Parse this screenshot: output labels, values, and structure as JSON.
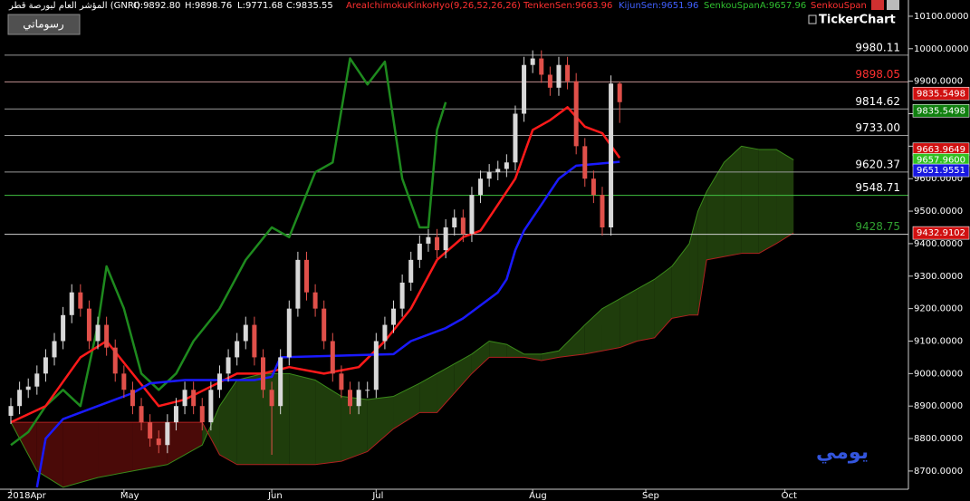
{
  "header": {
    "instrument": "المؤشر العام لبورصة قطر (GNRI)",
    "open": "O:9892.80",
    "high": "H:9898.76",
    "low": "L:9771.68",
    "close": "C:9835.55",
    "indicator": "AreaIchimokuKinkoHyo(9,26,52,26,26)",
    "tenkan": "TenkenSen:9663.96",
    "kijun": "KijunSen:9651.96",
    "senkou_a": "SenkouSpanA:9657.96",
    "senkou_b": "SenkouSpan",
    "logo": "TickerChart",
    "button": "رسوماتي"
  },
  "chart_data": {
    "type": "candlestick",
    "watermark": "يومي",
    "xlim": [
      -1.25,
      103.2
    ],
    "ylim": [
      8644,
      10150
    ],
    "xticks": [
      {
        "value": 0,
        "label": "2018Apr"
      },
      {
        "value": 13,
        "label": "May"
      },
      {
        "value": 30,
        "label": "Jun"
      },
      {
        "value": 42,
        "label": "Jul"
      },
      {
        "value": 60,
        "label": "Aug"
      },
      {
        "value": 73,
        "label": "Sep"
      },
      {
        "value": 89,
        "label": "Oct"
      }
    ],
    "yticks": [
      {
        "value": 8700,
        "label": "8700.0000"
      },
      {
        "value": 8800,
        "label": "8800.0000"
      },
      {
        "value": 8900,
        "label": "8900.0000"
      },
      {
        "value": 9000,
        "label": "9000.0000"
      },
      {
        "value": 9100,
        "label": "9100.0000"
      },
      {
        "value": 9200,
        "label": "9200.0000"
      },
      {
        "value": 9300,
        "label": "9300.0000"
      },
      {
        "value": 9400,
        "label": "9400.0000"
      },
      {
        "value": 9500,
        "label": "9500.0000"
      },
      {
        "value": 9600,
        "label": "9600.0000"
      },
      {
        "value": 9700,
        "label": "9700.0000"
      },
      {
        "value": 9800,
        "label": "9800.0000"
      },
      {
        "value": 9900,
        "label": "9900.0000"
      },
      {
        "value": 10000,
        "label": "10000.0000"
      },
      {
        "value": 10100,
        "label": "10100.0000"
      }
    ],
    "candles": {
      "up_color": "#d8d8d8",
      "down_color": "#e0504a",
      "x": [
        0,
        1,
        2,
        3,
        4,
        5,
        6,
        7,
        8,
        9,
        10,
        11,
        12,
        13,
        14,
        15,
        16,
        17,
        18,
        19,
        20,
        21,
        22,
        23,
        24,
        25,
        26,
        27,
        28,
        29,
        30,
        31,
        32,
        33,
        34,
        35,
        36,
        37,
        38,
        39,
        40,
        41,
        42,
        43,
        44,
        45,
        46,
        47,
        48,
        49,
        50,
        51,
        52,
        53,
        54,
        55,
        56,
        57,
        58,
        59,
        60,
        61,
        62,
        63,
        64,
        65,
        66,
        67,
        68,
        69,
        70
      ],
      "open": [
        8870,
        8900,
        8950,
        8960,
        9000,
        9050,
        9100,
        9180,
        9250,
        9200,
        9100,
        9150,
        9080,
        9000,
        8950,
        8900,
        8850,
        8800,
        8780,
        8850,
        8900,
        8950,
        8900,
        8850,
        8950,
        9000,
        9050,
        9100,
        9150,
        9050,
        8950,
        8900,
        9050,
        9200,
        9350,
        9250,
        9200,
        9100,
        9000,
        8950,
        8900,
        8950,
        8950,
        9100,
        9150,
        9200,
        9280,
        9350,
        9400,
        9420,
        9380,
        9450,
        9480,
        9430,
        9550,
        9600,
        9620,
        9630,
        9650,
        9800,
        9950,
        9970,
        9920,
        9880,
        9950,
        9900,
        9700,
        9600,
        9550,
        9450,
        9892.8
      ],
      "high": [
        8925,
        8975,
        8985,
        9025,
        9075,
        9125,
        9205,
        9275,
        9275,
        9225,
        9175,
        9175,
        9105,
        9025,
        8975,
        8925,
        8875,
        8825,
        8875,
        8925,
        8975,
        8975,
        8925,
        8975,
        9025,
        9075,
        9125,
        9175,
        9175,
        9075,
        8975,
        9075,
        9225,
        9375,
        9375,
        9275,
        9225,
        9125,
        9025,
        8975,
        8975,
        8975,
        9125,
        9175,
        9225,
        9305,
        9375,
        9425,
        9445,
        9445,
        9475,
        9505,
        9505,
        9575,
        9625,
        9645,
        9655,
        9675,
        9825,
        9975,
        9995,
        9995,
        9945,
        9975,
        9975,
        9925,
        9725,
        9625,
        9575,
        9917.8,
        9898.76
      ],
      "low": [
        8845,
        8875,
        8925,
        8935,
        8975,
        9025,
        9075,
        9155,
        9175,
        9075,
        9075,
        9055,
        8975,
        8925,
        8875,
        8825,
        8775,
        8755,
        8755,
        8825,
        8875,
        8875,
        8825,
        8825,
        8925,
        8975,
        9025,
        9075,
        9025,
        8925,
        8750,
        8875,
        9025,
        9175,
        9225,
        9175,
        9075,
        8975,
        8925,
        8875,
        8875,
        8925,
        8925,
        9075,
        9125,
        9175,
        9255,
        9325,
        9375,
        9355,
        9355,
        9425,
        9405,
        9405,
        9525,
        9575,
        9595,
        9605,
        9625,
        9775,
        9925,
        9895,
        9855,
        9855,
        9875,
        9675,
        9575,
        9525,
        9425,
        9425,
        9771.68
      ],
      "close": [
        8900,
        8950,
        8960,
        9000,
        9050,
        9100,
        9180,
        9250,
        9200,
        9100,
        9150,
        9080,
        9000,
        8950,
        8900,
        8850,
        8800,
        8780,
        8850,
        8900,
        8950,
        8900,
        8850,
        8950,
        9000,
        9050,
        9100,
        9150,
        9050,
        8950,
        8900,
        9050,
        9200,
        9350,
        9250,
        9200,
        9100,
        9000,
        8950,
        8900,
        8950,
        8950,
        9100,
        9150,
        9200,
        9280,
        9350,
        9400,
        9420,
        9380,
        9450,
        9480,
        9430,
        9550,
        9600,
        9620,
        9630,
        9650,
        9800,
        9950,
        9970,
        9920,
        9880,
        9950,
        9900,
        9700,
        9600,
        9550,
        9450,
        9892.8,
        9835.55
      ]
    },
    "cloud": {
      "up_fill": "#1f3d0c",
      "down_fill": "#4a0a08",
      "a_color": "#3a8a1a",
      "b_color": "#b02020",
      "x": [
        0,
        3,
        6,
        10,
        14,
        18,
        22,
        24,
        26,
        29,
        32,
        35,
        38,
        41,
        44,
        47,
        49,
        51,
        53,
        55,
        57,
        59,
        61,
        63,
        66,
        68,
        70,
        72,
        74,
        76,
        78,
        79,
        80,
        82,
        84,
        86,
        88,
        90
      ],
      "a": [
        8850,
        8700,
        8650,
        8680,
        8700,
        8720,
        8780,
        8900,
        8980,
        9000,
        9000,
        8980,
        8930,
        8920,
        8930,
        8970,
        9000,
        9030,
        9060,
        9100,
        9090,
        9060,
        9060,
        9070,
        9150,
        9200,
        9230,
        9260,
        9290,
        9330,
        9400,
        9500,
        9560,
        9650,
        9700,
        9690,
        9690,
        9657.96
      ],
      "b": [
        8850,
        8850,
        8850,
        8850,
        8850,
        8850,
        8850,
        8750,
        8720,
        8720,
        8720,
        8720,
        8730,
        8760,
        8830,
        8880,
        8880,
        8940,
        9000,
        9050,
        9050,
        9050,
        9040,
        9050,
        9060,
        9070,
        9080,
        9100,
        9110,
        9170,
        9180,
        9180,
        9350,
        9360,
        9370,
        9370,
        9400,
        9432.91
      ]
    },
    "lines": [
      {
        "color": "#1e8a1e",
        "x": [
          0,
          2,
          4,
          6,
          8,
          10,
          11,
          13,
          15,
          17,
          19,
          21,
          24,
          27,
          30,
          32,
          35,
          37,
          39,
          41,
          43,
          45,
          47,
          48,
          49,
          50
        ],
        "values": [
          8780,
          8820,
          8900,
          8950,
          8900,
          9150,
          9330,
          9200,
          9000,
          8950,
          9000,
          9100,
          9200,
          9350,
          9450,
          9420,
          9620,
          9650,
          9970,
          9890,
          9960,
          9600,
          9450,
          9450,
          9750,
          9835.55
        ]
      },
      {
        "color": "#ff1a1a",
        "x": [
          0,
          4,
          8,
          11,
          14,
          17,
          20,
          23,
          26,
          29,
          32,
          36,
          40,
          43,
          46,
          49,
          52,
          54,
          56,
          58,
          60,
          62,
          64,
          66,
          68,
          70
        ],
        "values": [
          8850,
          8900,
          9050,
          9100,
          9000,
          8900,
          8920,
          8960,
          9000,
          9000,
          9020,
          9000,
          9020,
          9100,
          9200,
          9350,
          9420,
          9440,
          9520,
          9600,
          9750,
          9780,
          9820,
          9760,
          9740,
          9663.96
        ]
      },
      {
        "color": "#1a1aff",
        "x": [
          3,
          4,
          6,
          10,
          14,
          16,
          20,
          28,
          30,
          31,
          44,
          46,
          50,
          52,
          56,
          57,
          58,
          59,
          61,
          63,
          65,
          70
        ],
        "values": [
          8650,
          8800,
          8860,
          8900,
          8940,
          8970,
          8980,
          8980,
          8990,
          9050,
          9060,
          9100,
          9140,
          9170,
          9250,
          9290,
          9380,
          9440,
          9520,
          9600,
          9640,
          9651.96
        ]
      }
    ],
    "levels": [
      {
        "value": 9980.11,
        "label": "9980.11",
        "color": "#ffffff",
        "line": "#9a9a9a"
      },
      {
        "value": 9898.05,
        "label": "9898.05",
        "color": "#ff3030",
        "line": "#c09090"
      },
      {
        "value": 9814.62,
        "label": "9814.62",
        "color": "#ffffff",
        "line": "#9a9a9a"
      },
      {
        "value": 9733.0,
        "label": "9733.00",
        "color": "#ffffff",
        "line": "#9a9a9a"
      },
      {
        "value": 9620.37,
        "label": "9620.37",
        "color": "#ffffff",
        "line": "#9a9a9a"
      },
      {
        "value": 9548.71,
        "label": "9548.71",
        "color": "#ffffff",
        "line": "#40c040"
      },
      {
        "value": 9428.75,
        "label": "9428.75",
        "color": "#30a030",
        "line": "#d0d0d0"
      }
    ],
    "badges": [
      {
        "value": 9835.5498,
        "label": "9835.5498",
        "color": "#d01010",
        "offset": -1
      },
      {
        "value": 9835.5498,
        "label": "9835.5498",
        "color": "#10800f",
        "offset": 1
      },
      {
        "value": 9663.9649,
        "label": "9663.9649",
        "color": "#d01010",
        "offset": -1
      },
      {
        "value": 9657.96,
        "label": "9657.9600",
        "color": "#30c020",
        "offset": 0
      },
      {
        "value": 9651.9551,
        "label": "9651.9551",
        "color": "#1818e0",
        "offset": 1
      },
      {
        "value": 9432.9102,
        "label": "9432.9102",
        "color": "#d01010",
        "offset": 0
      }
    ]
  }
}
